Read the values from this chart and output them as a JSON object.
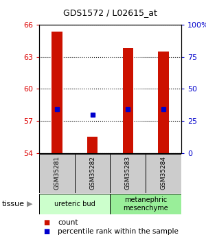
{
  "title": "GDS1572 / L02615_at",
  "samples": [
    "GSM35281",
    "GSM35282",
    "GSM35283",
    "GSM35284"
  ],
  "bar_bottoms": [
    54,
    54,
    54,
    54
  ],
  "bar_tops": [
    65.4,
    55.5,
    63.8,
    63.5
  ],
  "percentile_values": [
    34,
    30,
    34,
    34
  ],
  "ylim": [
    54,
    66
  ],
  "yticks_left": [
    54,
    57,
    60,
    63,
    66
  ],
  "yticks_right": [
    0,
    25,
    50,
    75,
    100
  ],
  "ylabel_left_color": "#dd0000",
  "ylabel_right_color": "#0000cc",
  "bar_color": "#cc1100",
  "percentile_color": "#0000cc",
  "tissue_groups": [
    {
      "label": "ureteric bud",
      "samples": [
        0,
        1
      ],
      "color": "#ccffcc"
    },
    {
      "label": "metanephric\nmesenchyme",
      "samples": [
        2,
        3
      ],
      "color": "#99ee99"
    }
  ],
  "legend_count_color": "#cc1100",
  "legend_percentile_color": "#0000cc",
  "background_color": "#ffffff",
  "sample_box_color": "#cccccc"
}
